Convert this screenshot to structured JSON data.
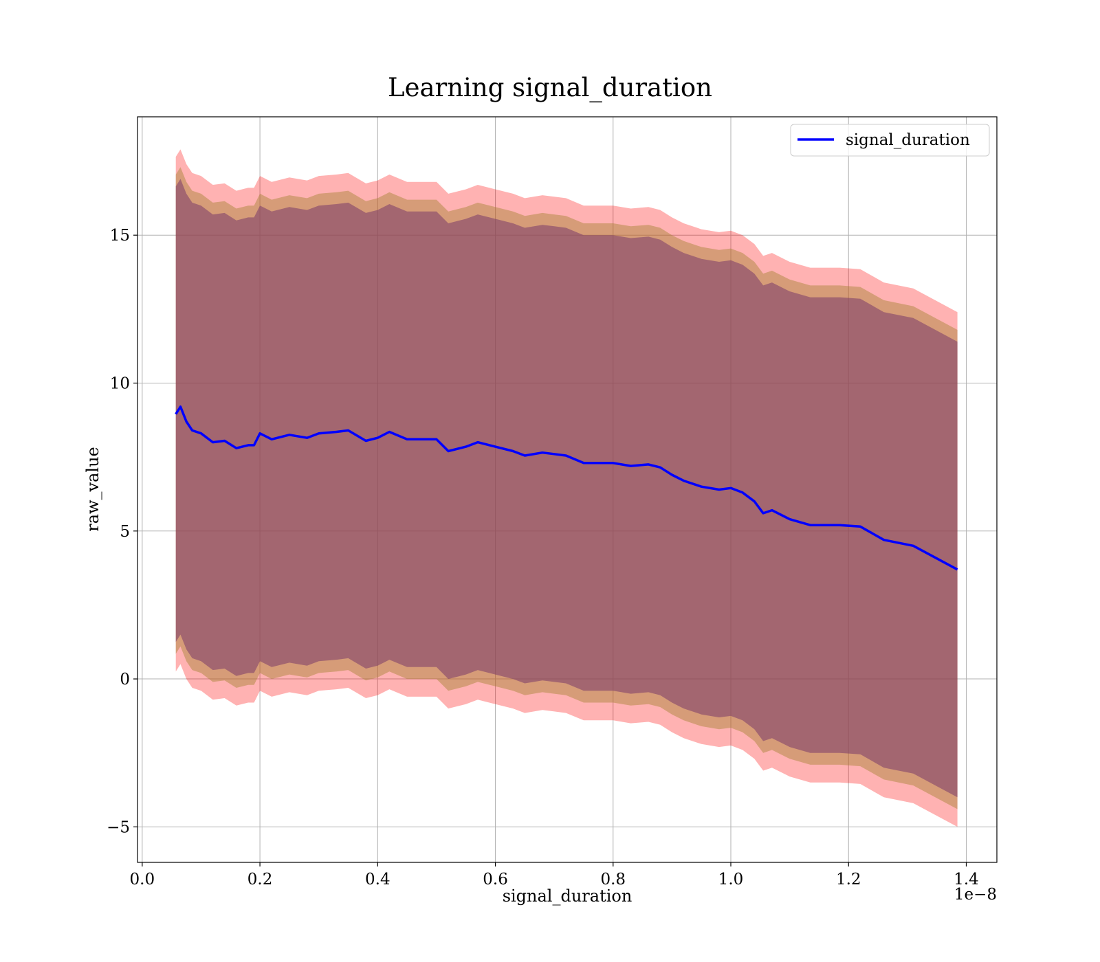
{
  "chart_data": {
    "type": "line",
    "title": "Learning signal_duration",
    "xlabel": "signal_duration",
    "ylabel": "raw_value",
    "x_offset_label": "1e−8",
    "xlim": [
      -0.008,
      1.452
    ],
    "ylim": [
      -6.2,
      19.0
    ],
    "x_ticks": [
      0.0,
      0.2,
      0.4,
      0.6,
      0.8,
      1.0,
      1.2,
      1.4
    ],
    "x_tick_labels": [
      "0.0",
      "0.2",
      "0.4",
      "0.6",
      "0.8",
      "1.0",
      "1.2",
      "1.4"
    ],
    "y_ticks": [
      -5,
      0,
      5,
      10,
      15
    ],
    "y_tick_labels": [
      "−5",
      "0",
      "5",
      "10",
      "15"
    ],
    "grid": true,
    "legend_position": "top-right",
    "series": [
      {
        "name": "signal_duration",
        "color": "#0000ff",
        "x": [
          0.057,
          0.065,
          0.075,
          0.085,
          0.1,
          0.12,
          0.14,
          0.16,
          0.18,
          0.19,
          0.2,
          0.22,
          0.25,
          0.28,
          0.3,
          0.33,
          0.35,
          0.38,
          0.4,
          0.42,
          0.45,
          0.48,
          0.5,
          0.52,
          0.55,
          0.57,
          0.6,
          0.63,
          0.65,
          0.68,
          0.7,
          0.72,
          0.75,
          0.78,
          0.8,
          0.83,
          0.86,
          0.88,
          0.9,
          0.92,
          0.95,
          0.98,
          1.0,
          1.02,
          1.04,
          1.055,
          1.07,
          1.1,
          1.135,
          1.185,
          1.22,
          1.26,
          1.31,
          1.385
        ],
        "y": [
          8.95,
          9.2,
          8.7,
          8.4,
          8.3,
          8.0,
          8.05,
          7.8,
          7.9,
          7.9,
          8.3,
          8.1,
          8.25,
          8.15,
          8.3,
          8.35,
          8.4,
          8.05,
          8.15,
          8.35,
          8.1,
          8.1,
          8.1,
          7.7,
          7.85,
          8.0,
          7.85,
          7.7,
          7.55,
          7.65,
          7.6,
          7.55,
          7.3,
          7.3,
          7.3,
          7.2,
          7.25,
          7.15,
          6.9,
          6.7,
          6.5,
          6.4,
          6.45,
          6.3,
          6.0,
          5.6,
          5.7,
          5.4,
          5.2,
          5.2,
          5.15,
          4.7,
          4.5,
          3.7
        ]
      }
    ],
    "bands": [
      {
        "fill": "#ff0000",
        "opacity": 0.3,
        "upper_offset": 8.7,
        "lower_offset": 8.7
      },
      {
        "fill": "#a58030",
        "opacity": 0.45,
        "upper_offset": 8.1,
        "lower_offset": 8.1
      },
      {
        "fill": "#7a3a6a",
        "opacity": 0.55,
        "upper_offset": 7.7,
        "lower_offset": 7.7
      }
    ]
  }
}
